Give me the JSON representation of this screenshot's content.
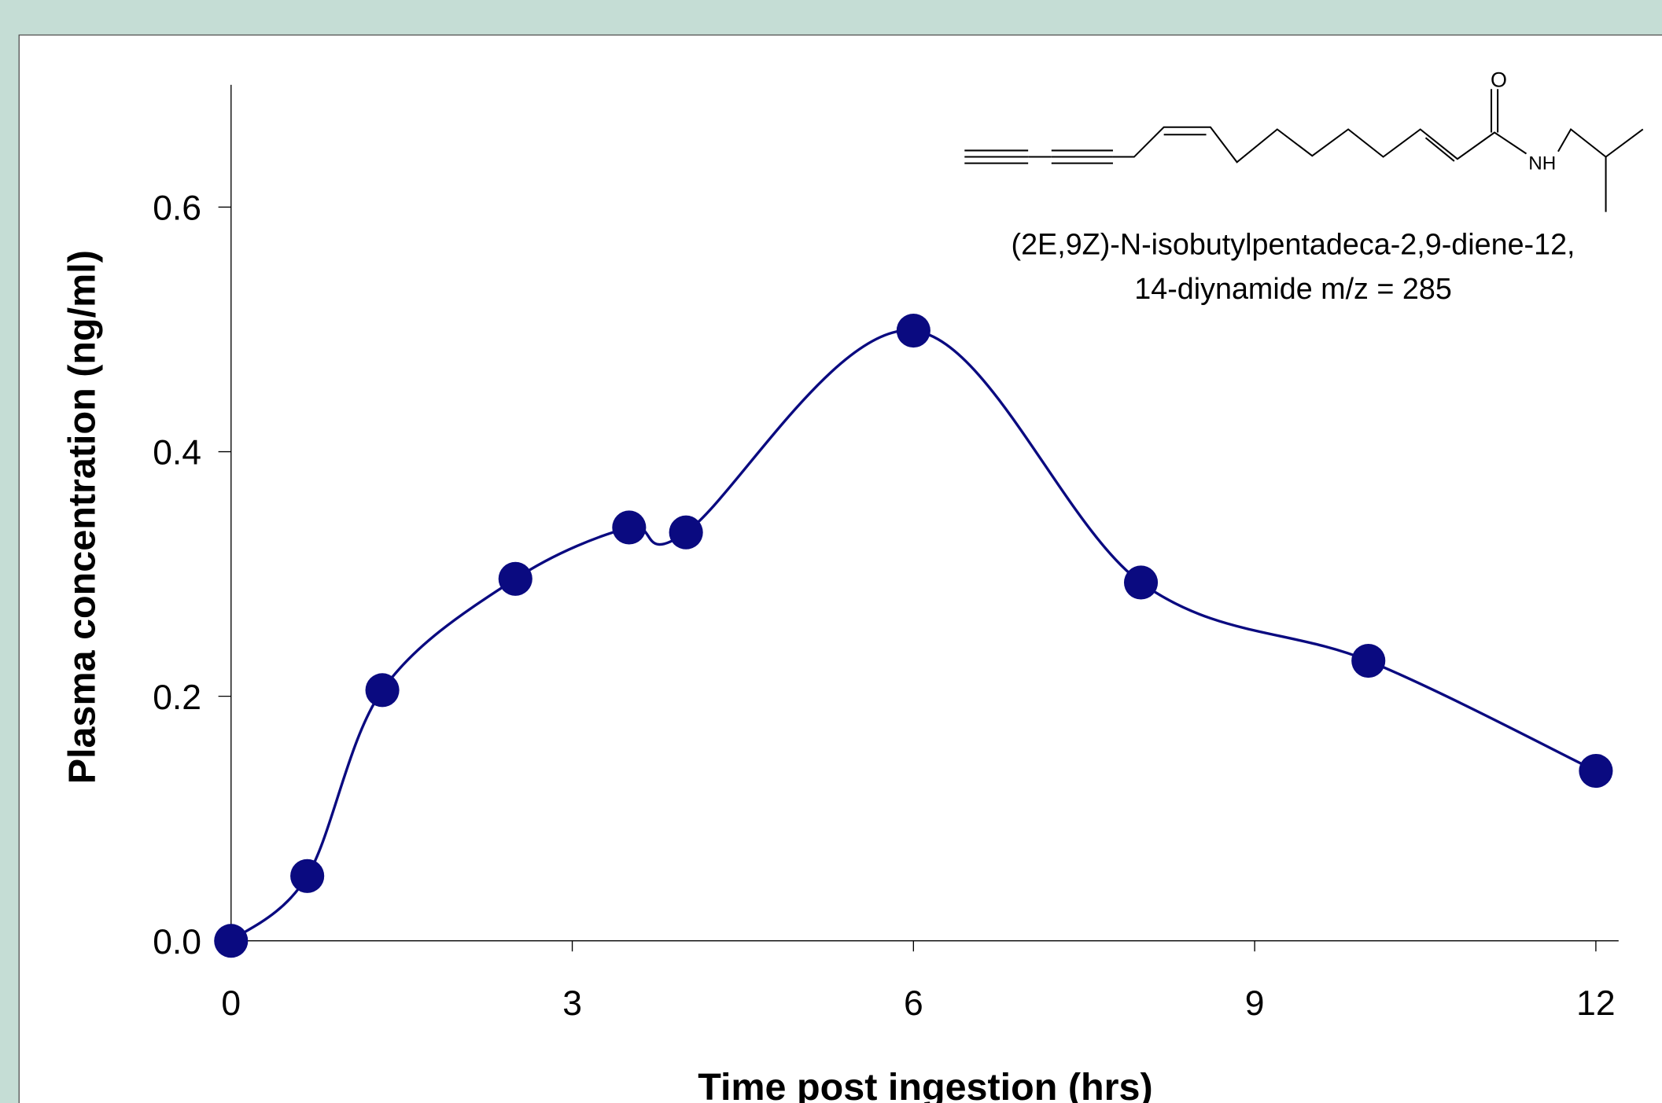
{
  "chart_data": {
    "type": "scatter",
    "x_label": "Time post ingestion (hrs)",
    "y_label": "Plasma concentration (ng/ml)",
    "annotations": [
      "(2E,9Z)-N-isobutylpentadeca-2,9-diene-12,",
      "14-diynamide m/z = 285"
    ],
    "x": [
      0,
      0.67,
      1.33,
      2.5,
      3.5,
      4,
      6,
      8,
      10,
      12
    ],
    "series": [
      {
        "name": "Plasma concentration",
        "color": "#0a0a80",
        "values": [
          0,
          0.053,
          0.205,
          0.296,
          0.338,
          0.334,
          0.499,
          0.293,
          0.229,
          0.139
        ]
      }
    ],
    "xlim": [
      0,
      12.2
    ],
    "ylim": [
      0,
      0.7
    ],
    "xticks": [
      0,
      3,
      6,
      9,
      12
    ],
    "yticks": [
      {
        "value": 0,
        "label": "0.0"
      },
      0.2,
      0.4,
      0.6
    ],
    "grid": false
  }
}
